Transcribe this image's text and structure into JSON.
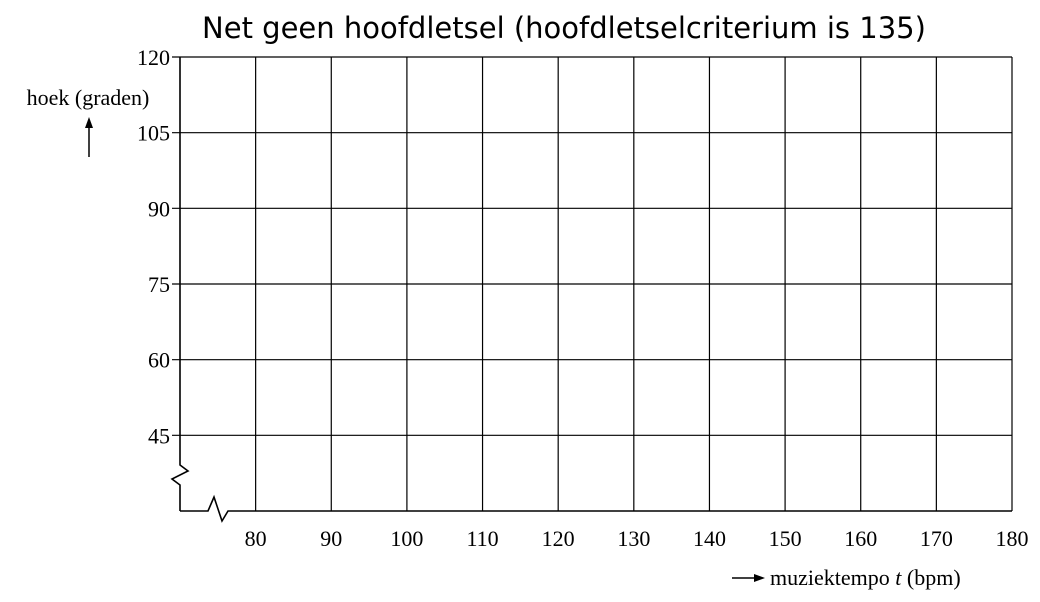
{
  "chart_data": {
    "type": "line",
    "title": "Net geen hoofdletsel (hoofdletselcriterium is 135)",
    "xlabel": "muziektempo",
    "xlabel_var": "t",
    "xlabel_unit": "(bpm)",
    "ylabel": "hoek (graden)",
    "xlim": [
      70,
      180
    ],
    "ylim": [
      30,
      120
    ],
    "x_ticks": [
      80,
      90,
      100,
      110,
      120,
      130,
      140,
      150,
      160,
      170,
      180
    ],
    "y_ticks": [
      45,
      60,
      75,
      90,
      105,
      120
    ],
    "x_axis_break": true,
    "y_axis_break": true,
    "grid": true,
    "series": []
  }
}
